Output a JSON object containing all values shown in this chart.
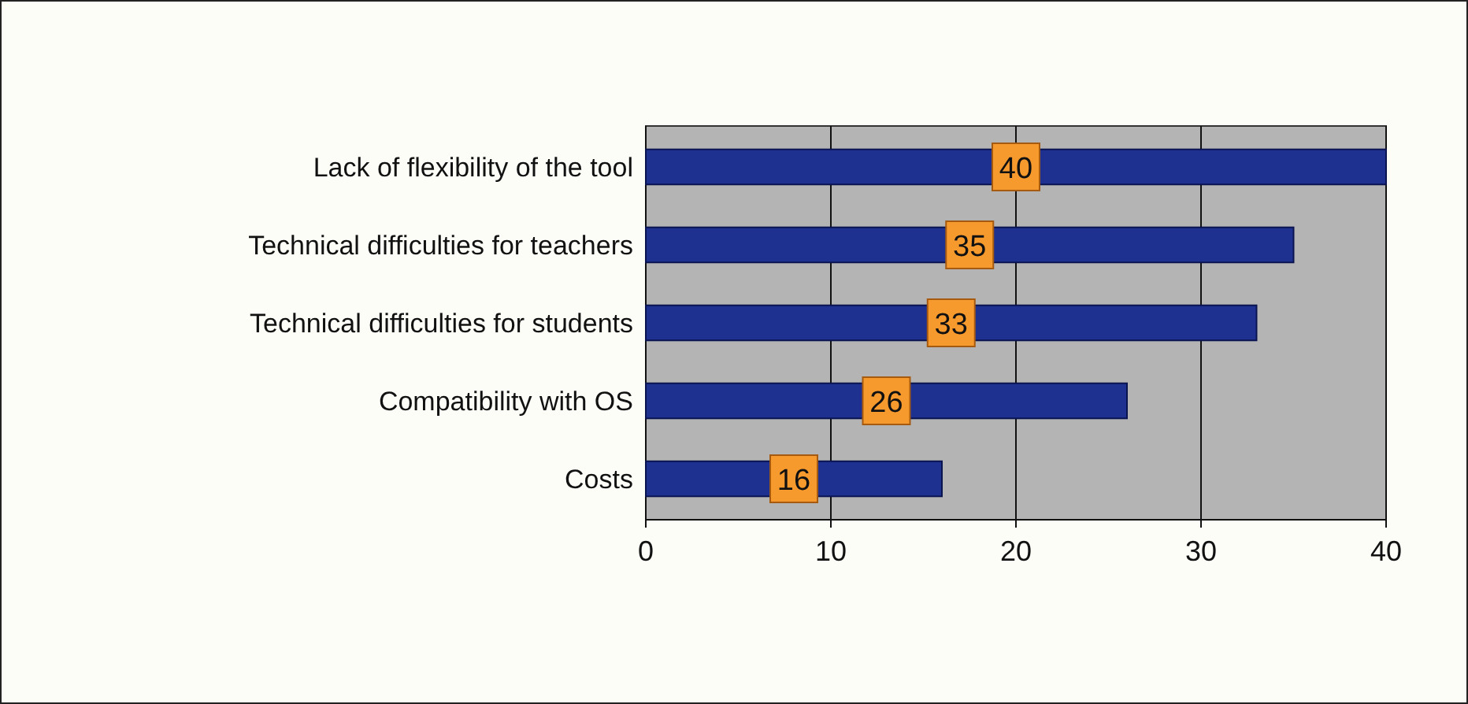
{
  "chart_data": {
    "type": "bar",
    "orientation": "horizontal",
    "categories": [
      "Lack of flexibility of the tool",
      "Technical difficulties for teachers",
      "Technical difficulties for students",
      "Compatibility with OS",
      "Costs"
    ],
    "values": [
      40,
      35,
      33,
      26,
      16
    ],
    "color": "#1f3190",
    "xlim": [
      0,
      40
    ],
    "xticks": [
      0,
      10,
      20,
      30,
      40
    ],
    "grid": "x",
    "data_labels": true
  }
}
